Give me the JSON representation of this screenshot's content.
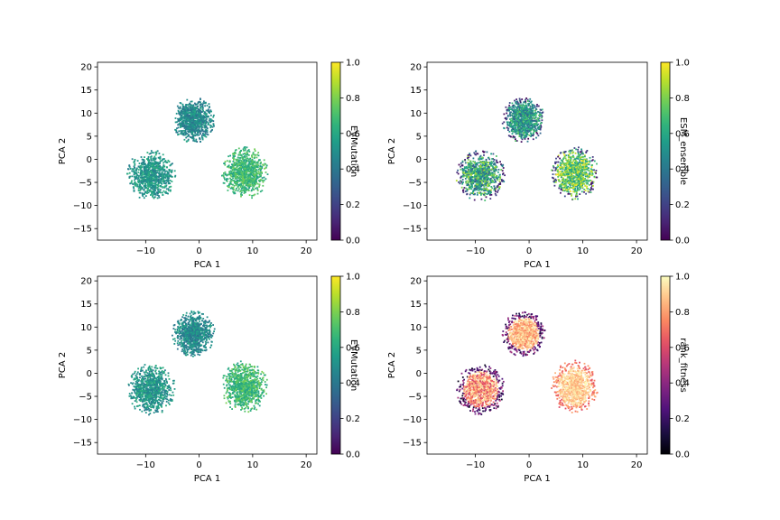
{
  "figure": {
    "background": "#ffffff"
  },
  "chart_data": [
    {
      "type": "scatter",
      "panel": "top-left",
      "xlabel": "PCA 1",
      "ylabel": "PCA 2",
      "xlim": [
        -19,
        22
      ],
      "ylim": [
        -17.5,
        21
      ],
      "xticks": [
        -10,
        0,
        10,
        20
      ],
      "xtick_labels": [
        "−10",
        "0",
        "10",
        "20"
      ],
      "yticks": [
        -15,
        -10,
        -5,
        0,
        5,
        10,
        15,
        20
      ],
      "ytick_labels": [
        "−15",
        "−10",
        "−5",
        "0",
        "5",
        "10",
        "15",
        "20"
      ],
      "colormap": "viridis",
      "colorbar": {
        "label": "EVMutation",
        "range": [
          0,
          1
        ],
        "ticks": [
          "0.0",
          "0.2",
          "0.4",
          "0.6",
          "0.8",
          "1.0"
        ]
      },
      "clusters": [
        {
          "center": [
            -1,
            8.5
          ],
          "spread": [
            3.5,
            4.3
          ],
          "color_value_range": [
            0.35,
            0.6
          ]
        },
        {
          "center": [
            -9,
            -3.5
          ],
          "spread": [
            4.0,
            4.8
          ],
          "color_value_range": [
            0.4,
            0.65
          ]
        },
        {
          "center": [
            8.5,
            -3
          ],
          "spread": [
            3.8,
            5.0
          ],
          "color_value_range": [
            0.55,
            0.8
          ]
        }
      ],
      "grid": false
    },
    {
      "type": "scatter",
      "panel": "top-right",
      "xlabel": "PCA 1",
      "ylabel": "PCA 2",
      "xlim": [
        -19,
        22
      ],
      "ylim": [
        -17.5,
        21
      ],
      "xticks": [
        -10,
        0,
        10,
        20
      ],
      "xtick_labels": [
        "−10",
        "0",
        "10",
        "20"
      ],
      "yticks": [
        -15,
        -10,
        -5,
        0,
        5,
        10,
        15,
        20
      ],
      "ytick_labels": [
        "−15",
        "−10",
        "−5",
        "0",
        "5",
        "10",
        "15",
        "20"
      ],
      "colormap": "viridis",
      "colorbar": {
        "label": "ESM_ensemble",
        "range": [
          0,
          1
        ],
        "ticks": [
          "0.0",
          "0.2",
          "0.4",
          "0.6",
          "0.8",
          "1.0"
        ]
      },
      "clusters": [
        {
          "center": [
            -1,
            8.5
          ],
          "spread": [
            3.5,
            4.3
          ],
          "color_value_range": [
            0.3,
            0.75
          ]
        },
        {
          "center": [
            -9,
            -3.5
          ],
          "spread": [
            4.0,
            4.8
          ],
          "color_value_range": [
            0.25,
            0.9
          ]
        },
        {
          "center": [
            8.5,
            -3
          ],
          "spread": [
            3.8,
            5.0
          ],
          "color_value_range": [
            0.5,
            1.0
          ]
        }
      ],
      "grid": false
    },
    {
      "type": "scatter",
      "panel": "bottom-left",
      "xlabel": "PCA 1",
      "ylabel": "PCA 2",
      "xlim": [
        -19,
        22
      ],
      "ylim": [
        -17.5,
        21
      ],
      "xticks": [
        -10,
        0,
        10,
        20
      ],
      "xtick_labels": [
        "−10",
        "0",
        "10",
        "20"
      ],
      "yticks": [
        -15,
        -10,
        -5,
        0,
        5,
        10,
        15,
        20
      ],
      "ytick_labels": [
        "−15",
        "−10",
        "−5",
        "0",
        "5",
        "10",
        "15",
        "20"
      ],
      "colormap": "viridis",
      "colorbar": {
        "label": "EVMutation",
        "range": [
          0,
          1
        ],
        "ticks": [
          "0.0",
          "0.2",
          "0.4",
          "0.6",
          "0.8",
          "1.0"
        ]
      },
      "clusters": [
        {
          "center": [
            -1,
            8.5
          ],
          "spread": [
            3.5,
            4.3
          ],
          "color_value_range": [
            0.35,
            0.6
          ]
        },
        {
          "center": [
            -9,
            -3.5
          ],
          "spread": [
            4.0,
            4.8
          ],
          "color_value_range": [
            0.4,
            0.65
          ]
        },
        {
          "center": [
            8.5,
            -3
          ],
          "spread": [
            3.8,
            5.0
          ],
          "color_value_range": [
            0.55,
            0.8
          ]
        }
      ],
      "grid": false
    },
    {
      "type": "scatter",
      "panel": "bottom-right",
      "xlabel": "PCA 1",
      "ylabel": "PCA 2",
      "xlim": [
        -19,
        22
      ],
      "ylim": [
        -17.5,
        21
      ],
      "xticks": [
        -10,
        0,
        10,
        20
      ],
      "xtick_labels": [
        "−10",
        "0",
        "10",
        "20"
      ],
      "yticks": [
        -15,
        -10,
        -5,
        0,
        5,
        10,
        15,
        20
      ],
      "ytick_labels": [
        "−15",
        "−10",
        "−5",
        "0",
        "5",
        "10",
        "15",
        "20"
      ],
      "colormap": "magma",
      "colorbar": {
        "label": "rank_fitness",
        "range": [
          0,
          1
        ],
        "ticks": [
          "0.0",
          "0.2",
          "0.4",
          "0.6",
          "0.8",
          "1.0"
        ]
      },
      "clusters": [
        {
          "center": [
            -1,
            8.5
          ],
          "spread": [
            3.5,
            4.3
          ],
          "color_value_range": [
            0.7,
            1.0
          ],
          "edge_value_range": [
            0.1,
            0.5
          ]
        },
        {
          "center": [
            -9,
            -3.5
          ],
          "spread": [
            4.0,
            4.8
          ],
          "color_value_range": [
            0.55,
            1.0
          ],
          "edge_value_range": [
            0.05,
            0.5
          ]
        },
        {
          "center": [
            8.5,
            -3
          ],
          "spread": [
            3.8,
            5.0
          ],
          "color_value_range": [
            0.8,
            1.0
          ],
          "edge_value_range": [
            0.6,
            0.85
          ]
        }
      ],
      "grid": false
    }
  ]
}
